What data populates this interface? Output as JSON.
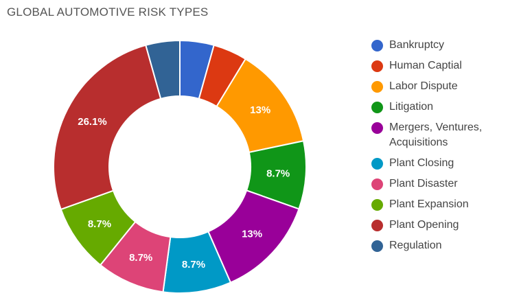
{
  "chart_data": {
    "type": "pie",
    "title": "GLOBAL AUTOMOTIVE RISK TYPES",
    "donut": true,
    "legend_position": "right",
    "categories": [
      "Bankruptcy",
      "Human Captial",
      "Labor Dispute",
      "Litigation",
      "Mergers, Ventures, Acquisitions",
      "Plant Closing",
      "Plant Disaster",
      "Plant Expansion",
      "Plant Opening",
      "Regulation"
    ],
    "values": [
      4.35,
      4.35,
      13.0,
      8.7,
      13.0,
      8.7,
      8.7,
      8.7,
      26.1,
      4.35
    ],
    "data_labels": [
      "",
      "",
      "13%",
      "8.7%",
      "13%",
      "8.7%",
      "8.7%",
      "8.7%",
      "26.1%",
      ""
    ],
    "colors": [
      "#3366cc",
      "#dc3912",
      "#ff9900",
      "#109618",
      "#990099",
      "#0099c6",
      "#dd4477",
      "#66aa00",
      "#b82e2e",
      "#316395"
    ]
  }
}
